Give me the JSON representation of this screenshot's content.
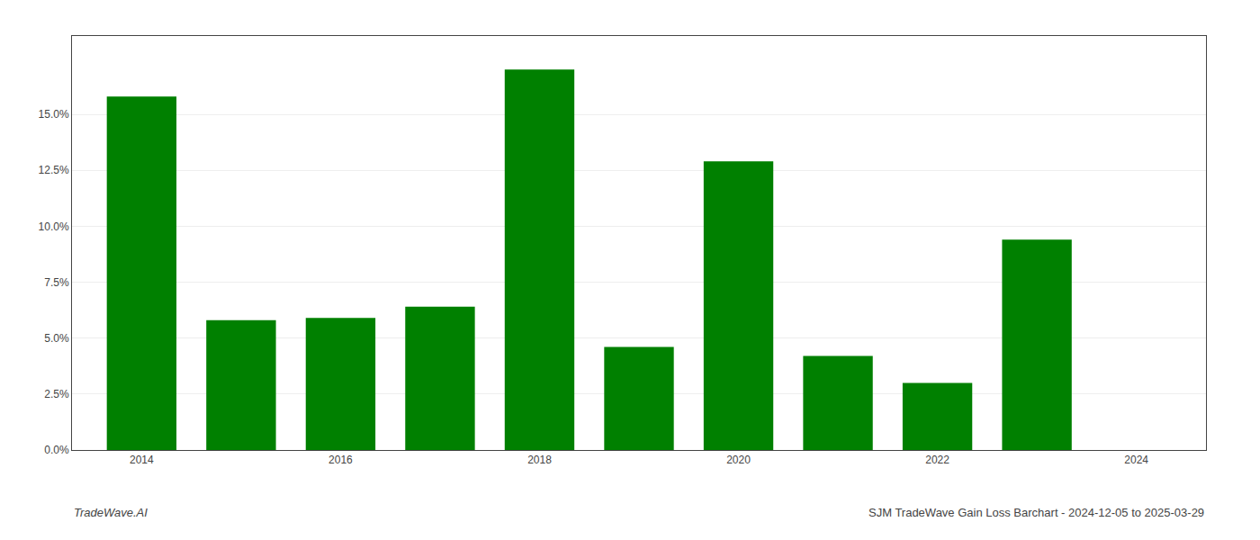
{
  "chart_data": {
    "type": "bar",
    "x": [
      2014,
      2015,
      2016,
      2017,
      2018,
      2019,
      2020,
      2021,
      2022,
      2023
    ],
    "values": [
      0.158,
      0.058,
      0.059,
      0.064,
      0.17,
      0.046,
      0.129,
      0.042,
      0.03,
      0.094
    ],
    "color": "#008000",
    "xlim": [
      2013.3,
      2024.7
    ],
    "xticks": [
      2014,
      2016,
      2018,
      2020,
      2022,
      2024
    ],
    "ylim": [
      0,
      0.185
    ],
    "yticks": [
      {
        "value": 0.0,
        "label": "0.0%"
      },
      {
        "value": 0.025,
        "label": "2.5%"
      },
      {
        "value": 0.05,
        "label": "5.0%"
      },
      {
        "value": 0.075,
        "label": "7.5%"
      },
      {
        "value": 0.1,
        "label": "10.0%"
      },
      {
        "value": 0.125,
        "label": "12.5%"
      },
      {
        "value": 0.15,
        "label": "15.0%"
      }
    ],
    "grid": true,
    "annotations": [
      "TradeWave.AI",
      "SJM TradeWave Gain Loss Barchart - 2024-12-05 to 2025-03-29"
    ]
  }
}
